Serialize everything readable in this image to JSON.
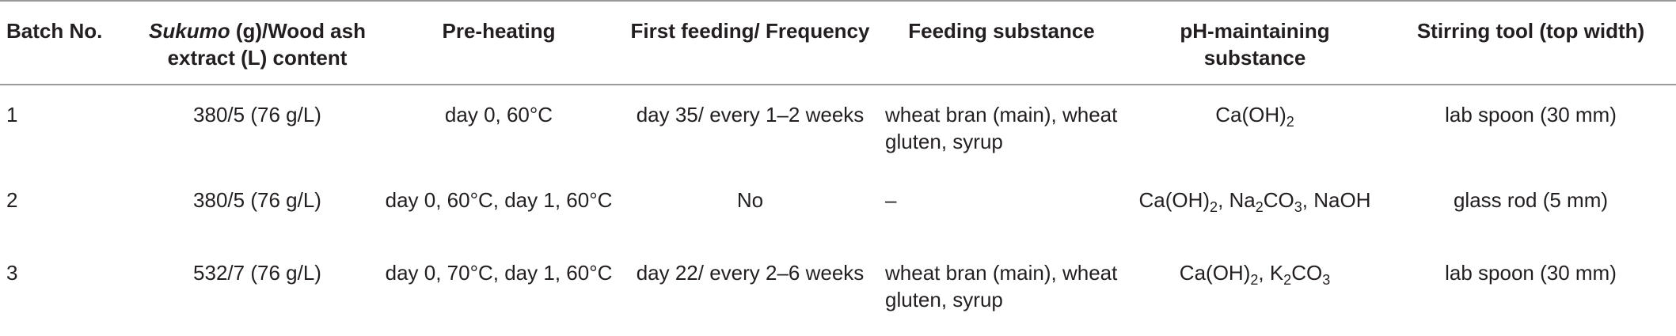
{
  "table": {
    "headers": {
      "batch": "Batch No.",
      "sukumo_italic": "Sukumo",
      "sukumo_rest": " (g)/Wood ash extract (L) content",
      "preheating": "Pre-heating",
      "first_feeding": "First feeding/ Frequency",
      "feeding_substance": "Feeding substance",
      "ph_substance": "pH-maintaining substance",
      "stirring_tool": "Stirring tool (top width)"
    },
    "rows": [
      {
        "batch": "1",
        "sukumo": "380/5 (76 g/L)",
        "preheating": "day 0, 60°C",
        "first_feeding": "day 35/ every 1–2 weeks",
        "feeding_substance": "wheat bran (main), wheat gluten, syrup",
        "ph": {
          "c1": "Ca(OH)",
          "c1_sub": "2"
        },
        "stirring_tool": "lab spoon (30 mm)"
      },
      {
        "batch": "2",
        "sukumo": "380/5 (76 g/L)",
        "preheating": "day 0, 60°C, day 1, 60°C",
        "first_feeding": "No",
        "feeding_substance": "–",
        "ph": {
          "c1": "Ca(OH)",
          "c1_sub": "2",
          "sep1": ", ",
          "c2": "Na",
          "c2_sub": "2",
          "c2_tail": "CO",
          "c2_sub2": "3",
          "sep2": ", ",
          "c3": "NaOH"
        },
        "stirring_tool": "glass rod (5 mm)"
      },
      {
        "batch": "3",
        "sukumo": "532/7 (76 g/L)",
        "preheating": "day 0, 70°C, day 1, 60°C",
        "first_feeding": "day 22/ every 2–6 weeks",
        "feeding_substance": "wheat bran (main), wheat gluten, syrup",
        "ph": {
          "c1": "Ca(OH)",
          "c1_sub": "2",
          "sep1": ", ",
          "c2": "K",
          "c2_sub": "2",
          "c2_tail": "CO",
          "c2_sub2": "3"
        },
        "stirring_tool": "lab spoon (30 mm)"
      }
    ]
  }
}
